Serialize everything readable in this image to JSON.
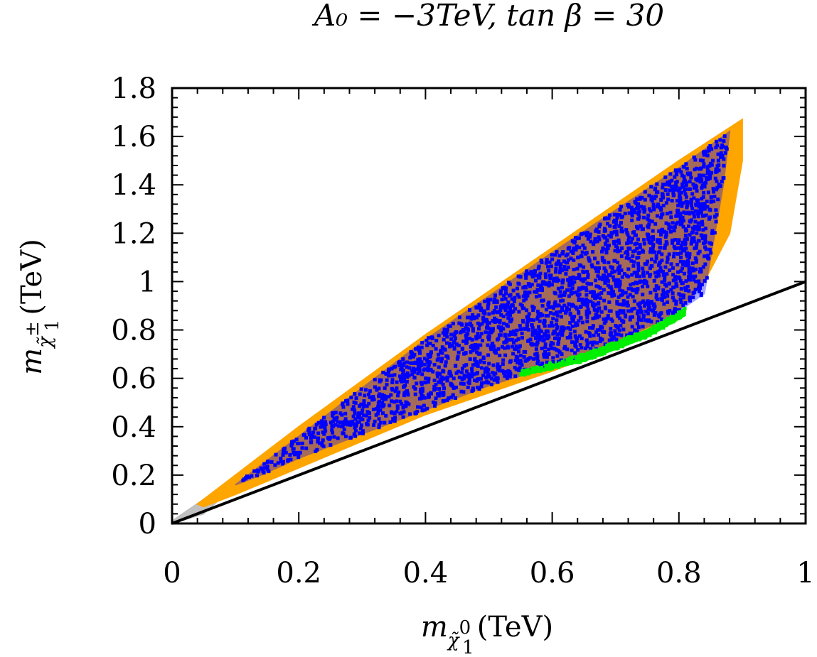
{
  "chart_data": {
    "type": "scatter",
    "title": "A₀ = −3TeV, tan β = 30",
    "xlabel": {
      "sym": "m",
      "sub": "χ̃",
      "subsub": "1",
      "supsub": "0",
      "unit": "(TeV)"
    },
    "ylabel": {
      "sym": "m",
      "sub": "χ̃",
      "subsub": "1",
      "supsub": "±",
      "unit": "(TeV)"
    },
    "xlim": [
      0,
      1
    ],
    "ylim": [
      0,
      1.8
    ],
    "x_ticks": [
      "0",
      "0.2",
      "0.4",
      "0.6",
      "0.8",
      "1"
    ],
    "y_ticks": [
      "0",
      "0.2",
      "0.4",
      "0.6",
      "0.8",
      "1",
      "1.2",
      "1.4",
      "1.6",
      "1.8"
    ],
    "grid": false,
    "legend": "none",
    "colors": {
      "gray": "#c0c0c0",
      "orange": "#ffa500",
      "blue": "#0000ff",
      "green": "#00ee00",
      "line": "#000000"
    },
    "reference_line": {
      "x": [
        0,
        1
      ],
      "y": [
        0,
        1
      ]
    },
    "regions": [
      {
        "color": "gray",
        "polygon": [
          [
            0,
            0
          ],
          [
            0.05,
            0.04
          ],
          [
            0.1,
            0.16
          ],
          [
            0.05,
            0.1
          ],
          [
            0,
            0.01
          ]
        ]
      },
      {
        "color": "orange",
        "polygon": [
          [
            0.04,
            0.08
          ],
          [
            0.2,
            0.4
          ],
          [
            0.4,
            0.78
          ],
          [
            0.6,
            1.14
          ],
          [
            0.8,
            1.5
          ],
          [
            0.9,
            1.67
          ],
          [
            0.9,
            1.5
          ],
          [
            0.88,
            1.2
          ],
          [
            0.84,
            1.0
          ],
          [
            0.8,
            0.88
          ],
          [
            0.7,
            0.73
          ],
          [
            0.6,
            0.63
          ],
          [
            0.5,
            0.54
          ],
          [
            0.4,
            0.45
          ],
          [
            0.3,
            0.34
          ],
          [
            0.2,
            0.23
          ],
          [
            0.1,
            0.12
          ],
          [
            0.05,
            0.07
          ]
        ]
      },
      {
        "color": "blue",
        "polygon": [
          [
            0.1,
            0.16
          ],
          [
            0.2,
            0.36
          ],
          [
            0.4,
            0.76
          ],
          [
            0.6,
            1.12
          ],
          [
            0.8,
            1.47
          ],
          [
            0.88,
            1.62
          ],
          [
            0.87,
            1.4
          ],
          [
            0.85,
            1.1
          ],
          [
            0.84,
            0.95
          ],
          [
            0.79,
            0.86
          ],
          [
            0.7,
            0.75
          ],
          [
            0.6,
            0.65
          ],
          [
            0.5,
            0.57
          ],
          [
            0.4,
            0.47
          ],
          [
            0.3,
            0.37
          ],
          [
            0.2,
            0.27
          ],
          [
            0.14,
            0.2
          ]
        ]
      },
      {
        "color": "green",
        "polygon": [
          [
            0.55,
            0.61
          ],
          [
            0.65,
            0.67
          ],
          [
            0.75,
            0.77
          ],
          [
            0.81,
            0.86
          ],
          [
            0.81,
            0.89
          ],
          [
            0.75,
            0.8
          ],
          [
            0.65,
            0.7
          ],
          [
            0.55,
            0.63
          ]
        ]
      }
    ]
  }
}
